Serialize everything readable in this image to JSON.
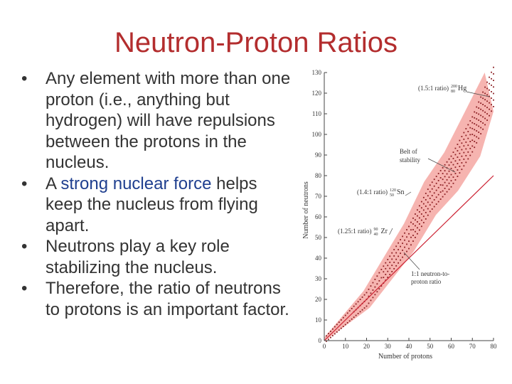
{
  "slide": {
    "title": "Neutron-Proton Ratios",
    "bullets": [
      {
        "text": "Any element with more than one proton (i.e., anything but hydrogen) will have repulsions between the protons in the nucleus."
      },
      {
        "pre": "A ",
        "highlight": "strong nuclear force",
        "post": " helps keep the nucleus from flying apart."
      },
      {
        "text": "Neutrons play a key role stabilizing the nucleus."
      },
      {
        "text": "Therefore, the ratio of neutrons to protons is an important factor."
      }
    ]
  },
  "colors": {
    "title": "#b32d2e",
    "body_text": "#333333",
    "highlight": "#1f3f8f",
    "belt": "#f4a7a2",
    "line": "#cc2233",
    "dots": "#8b1e22"
  },
  "chart_data": {
    "type": "scatter",
    "xlabel": "Number of protons",
    "ylabel": "Number of neutrons",
    "xlim": [
      0,
      80
    ],
    "ylim": [
      0,
      130
    ],
    "xticks": [
      0,
      10,
      20,
      30,
      40,
      50,
      60,
      70,
      80
    ],
    "yticks": [
      0,
      10,
      20,
      30,
      40,
      50,
      60,
      70,
      80,
      90,
      100,
      110,
      120,
      130
    ],
    "belt_of_stability": [
      [
        0,
        0
      ],
      [
        20,
        20
      ],
      [
        40,
        50
      ],
      [
        50,
        69
      ],
      [
        60,
        82
      ],
      [
        70,
        100
      ],
      [
        80,
        123
      ]
    ],
    "ratio_line": {
      "label": "1:1 neutron-to-proton ratio",
      "points": [
        [
          0,
          0
        ],
        [
          80,
          80
        ]
      ]
    },
    "annotations": [
      {
        "text": "(1.5:1 ratio)",
        "isotope_mass": "200",
        "isotope_z": "80",
        "isotope_symbol": "Hg",
        "x": 80,
        "y": 120
      },
      {
        "text": "(1.4:1 ratio)",
        "isotope_mass": "120",
        "isotope_z": "50",
        "isotope_symbol": "Sn",
        "x": 50,
        "y": 70
      },
      {
        "text": "(1.25:1 ratio)",
        "isotope_mass": "90",
        "isotope_z": "40",
        "isotope_symbol": "Zr",
        "x": 40,
        "y": 50
      }
    ],
    "belt_label": "Belt of stability"
  }
}
